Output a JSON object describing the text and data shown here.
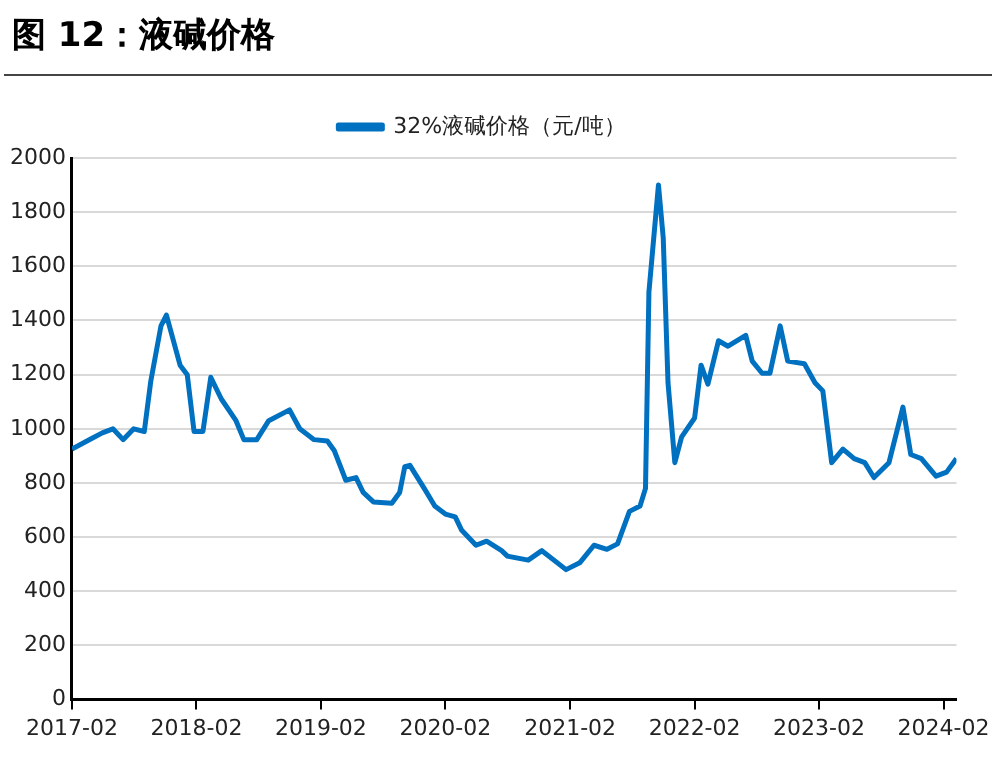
{
  "chart_data": {
    "type": "line",
    "title": "图 12：液碱价格",
    "x": [
      "2017-02-01",
      "2017-04-01",
      "2017-05-01",
      "2017-06-01",
      "2017-07-01",
      "2017-08-01",
      "2017-09-01",
      "2017-09-20",
      "2017-10-20",
      "2017-11-05",
      "2017-12-15",
      "2018-01-05",
      "2018-01-25",
      "2018-02-20",
      "2018-03-15",
      "2018-04-15",
      "2018-05-28",
      "2018-06-20",
      "2018-07-28",
      "2018-09-01",
      "2018-11-01",
      "2018-12-01",
      "2019-01-12",
      "2019-02-20",
      "2019-03-12",
      "2019-04-15",
      "2019-05-15",
      "2019-06-05",
      "2019-07-05",
      "2019-08-28",
      "2019-09-20",
      "2019-10-05",
      "2019-10-20",
      "2019-12-01",
      "2020-01-01",
      "2020-02-01",
      "2020-03-01",
      "2020-03-20",
      "2020-05-01",
      "2020-06-01",
      "2020-07-15",
      "2020-08-01",
      "2020-10-01",
      "2020-11-10",
      "2021-01-20",
      "2021-03-01",
      "2021-04-12",
      "2021-05-20",
      "2021-06-20",
      "2021-07-25",
      "2021-08-25",
      "2021-09-10",
      "2021-09-20",
      "2021-10-18",
      "2021-11-01",
      "2021-11-15",
      "2021-12-05",
      "2021-12-25",
      "2022-02-01",
      "2022-02-20",
      "2022-03-12",
      "2022-04-12",
      "2022-05-10",
      "2022-07-01",
      "2022-07-20",
      "2022-08-18",
      "2022-09-10",
      "2022-10-10",
      "2022-11-01",
      "2022-12-20",
      "2023-01-20",
      "2023-02-12",
      "2023-03-10",
      "2023-04-12",
      "2023-05-15",
      "2023-06-15",
      "2023-07-12",
      "2023-08-25",
      "2023-10-05",
      "2023-10-28",
      "2023-11-28",
      "2024-01-10",
      "2024-02-10",
      "2024-03-10"
    ],
    "series": [
      {
        "name": "32%液碱价格（元/吨）",
        "color": "#0070c0",
        "values": [
          925,
          965,
          985,
          1000,
          960,
          1000,
          990,
          1175,
          1380,
          1420,
          1235,
          1200,
          990,
          990,
          1190,
          1110,
          1030,
          960,
          960,
          1030,
          1070,
          1000,
          960,
          955,
          920,
          810,
          820,
          765,
          730,
          725,
          765,
          860,
          865,
          780,
          715,
          685,
          675,
          625,
          570,
          585,
          550,
          530,
          515,
          550,
          480,
          505,
          570,
          555,
          575,
          695,
          715,
          780,
          1505,
          1900,
          1705,
          1170,
          875,
          970,
          1040,
          1235,
          1165,
          1325,
          1305,
          1345,
          1250,
          1205,
          1205,
          1380,
          1250,
          1240,
          1170,
          1140,
          875,
          925,
          890,
          875,
          820,
          875,
          1080,
          905,
          890,
          825,
          840,
          890
        ]
      }
    ],
    "xlim": [
      "2017-02-01",
      "2024-03-10"
    ],
    "xticks": [
      "2017-02",
      "2018-02",
      "2019-02",
      "2020-02",
      "2021-02",
      "2022-02",
      "2023-02",
      "2024-02"
    ],
    "ylim": [
      0,
      2000
    ],
    "yticks": [
      0,
      200,
      400,
      600,
      800,
      1000,
      1200,
      1400,
      1600,
      1800,
      2000
    ],
    "grid": "y",
    "legend": "top",
    "marker": "none",
    "line_style": "solid"
  }
}
